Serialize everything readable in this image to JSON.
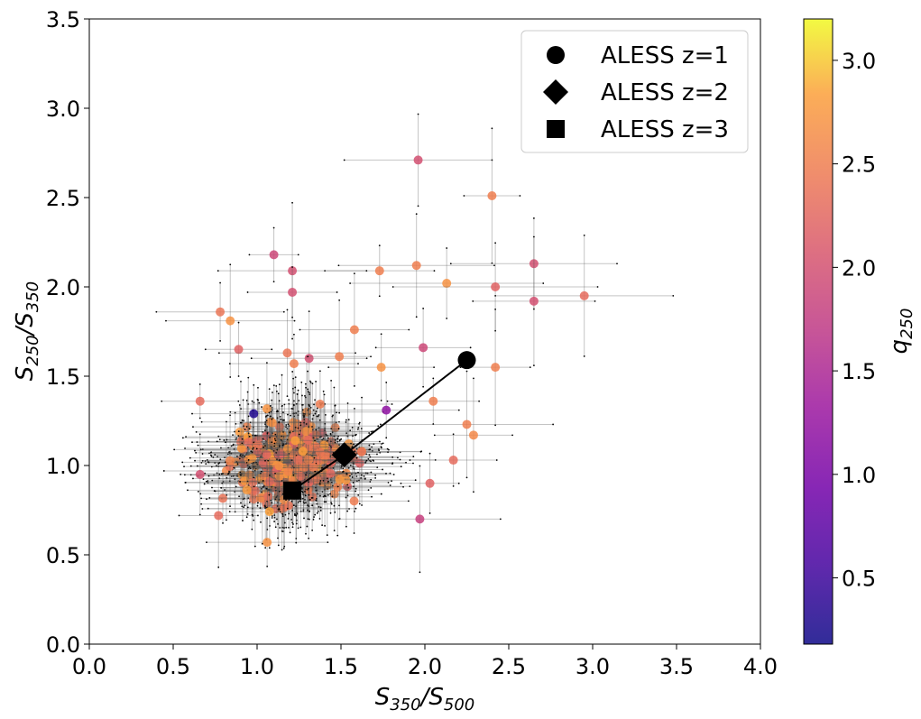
{
  "chart_data": {
    "type": "scatter",
    "xlabel": "S350/S500",
    "ylabel": "S250/S350",
    "xlim": [
      0.0,
      4.0
    ],
    "ylim": [
      0.0,
      3.5
    ],
    "x_ticks": [
      "0.0",
      "0.5",
      "1.0",
      "1.5",
      "2.0",
      "2.5",
      "3.0",
      "3.5",
      "4.0"
    ],
    "y_ticks": [
      "0.0",
      "0.5",
      "1.0",
      "1.5",
      "2.0",
      "2.5",
      "3.0",
      "3.5"
    ],
    "grid": false,
    "legend_position": "top-right",
    "legend": [
      {
        "marker": "circle",
        "label": "ALESS z=1"
      },
      {
        "marker": "diamond",
        "label": "ALESS z=2"
      },
      {
        "marker": "square",
        "label": "ALESS z=3"
      }
    ],
    "aless_track": [
      {
        "label": "ALESS z=1",
        "marker": "circle",
        "x": 2.25,
        "y": 1.59
      },
      {
        "label": "ALESS z=2",
        "marker": "diamond",
        "x": 1.52,
        "y": 1.06
      },
      {
        "label": "ALESS z=3",
        "marker": "square",
        "x": 1.21,
        "y": 0.86
      }
    ],
    "colorbar": {
      "label": "q250",
      "range": [
        0.18,
        3.2
      ],
      "ticks": [
        "0.5",
        "1.0",
        "1.5",
        "2.0",
        "2.5",
        "3.0"
      ],
      "colormap": "plasma"
    },
    "highlighted_points": [
      {
        "x": 1.96,
        "y": 2.71,
        "q": 2.0
      },
      {
        "x": 2.4,
        "y": 2.51,
        "q": 2.5
      },
      {
        "x": 1.1,
        "y": 2.18,
        "q": 1.9
      },
      {
        "x": 2.65,
        "y": 2.13,
        "q": 2.0
      },
      {
        "x": 1.95,
        "y": 2.12,
        "q": 2.5
      },
      {
        "x": 1.73,
        "y": 2.09,
        "q": 2.5
      },
      {
        "x": 1.21,
        "y": 2.09,
        "q": 2.0
      },
      {
        "x": 2.13,
        "y": 2.02,
        "q": 2.7
      },
      {
        "x": 2.42,
        "y": 2.0,
        "q": 2.2
      },
      {
        "x": 1.21,
        "y": 1.97,
        "q": 2.0
      },
      {
        "x": 2.95,
        "y": 1.95,
        "q": 2.3
      },
      {
        "x": 2.65,
        "y": 1.92,
        "q": 2.0
      },
      {
        "x": 0.78,
        "y": 1.86,
        "q": 2.4
      },
      {
        "x": 0.84,
        "y": 1.81,
        "q": 2.7
      },
      {
        "x": 1.58,
        "y": 1.76,
        "q": 2.5
      },
      {
        "x": 1.99,
        "y": 1.66,
        "q": 1.9
      },
      {
        "x": 0.89,
        "y": 1.65,
        "q": 2.2
      },
      {
        "x": 1.18,
        "y": 1.63,
        "q": 2.4
      },
      {
        "x": 1.31,
        "y": 1.6,
        "q": 2.0
      },
      {
        "x": 1.49,
        "y": 1.61,
        "q": 2.5
      },
      {
        "x": 2.42,
        "y": 1.55,
        "q": 2.5
      },
      {
        "x": 1.22,
        "y": 1.57,
        "q": 2.5
      },
      {
        "x": 1.74,
        "y": 1.55,
        "q": 2.7
      },
      {
        "x": 1.77,
        "y": 1.31,
        "q": 1.2
      },
      {
        "x": 0.98,
        "y": 1.29,
        "q": 0.3
      },
      {
        "x": 1.97,
        "y": 0.7,
        "q": 1.8
      },
      {
        "x": 2.05,
        "y": 1.36,
        "q": 2.5
      },
      {
        "x": 2.29,
        "y": 1.17,
        "q": 2.6
      },
      {
        "x": 2.25,
        "y": 1.23,
        "q": 2.5
      },
      {
        "x": 2.17,
        "y": 1.03,
        "q": 2.3
      },
      {
        "x": 2.03,
        "y": 0.9,
        "q": 2.2
      },
      {
        "x": 0.66,
        "y": 1.36,
        "q": 2.3
      },
      {
        "x": 0.66,
        "y": 0.95,
        "q": 2.0
      },
      {
        "x": 0.77,
        "y": 0.72,
        "q": 2.3
      },
      {
        "x": 1.06,
        "y": 0.57,
        "q": 2.7
      }
    ],
    "note": "Several hundred additional points with x/y error bars form a dense cluster centred near x~1.2, y~1.05 (spread x 0.45-2.1, y 0.55-1.45), coloured q250 ~2.2-2.8."
  }
}
